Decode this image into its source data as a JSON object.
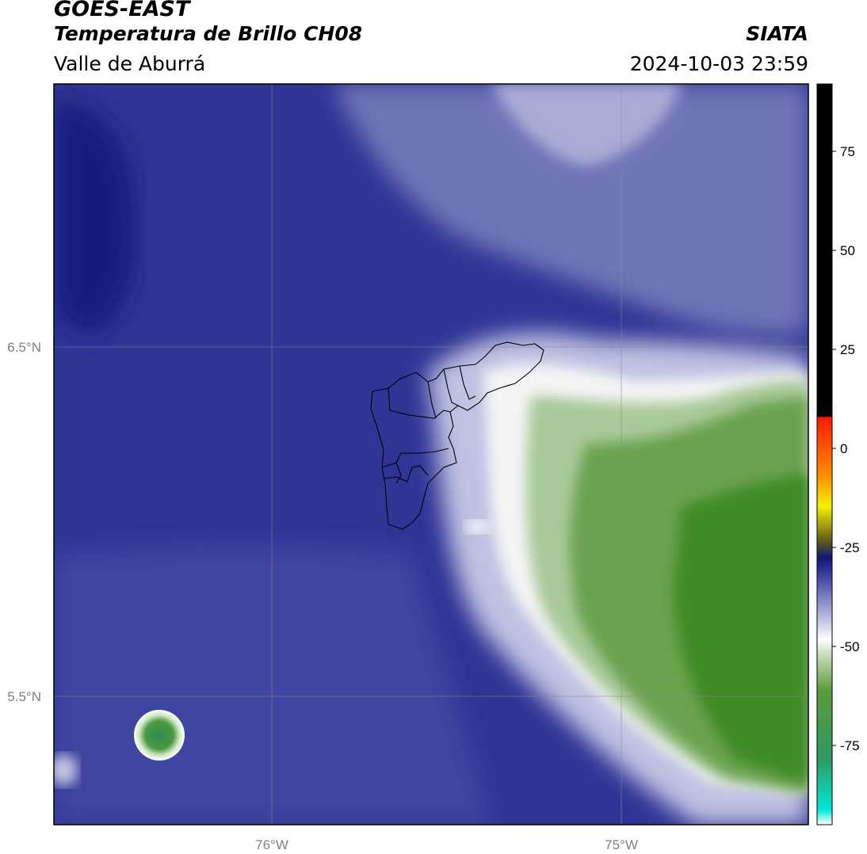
{
  "header": {
    "satellite": "GOES-EAST",
    "product": "Temperatura de Brillo CH08",
    "region": "Valle de Aburrá",
    "agency": "SIATA",
    "datetime": "2024-10-03 23:59"
  },
  "map": {
    "lat_ticks": [
      {
        "label": "6.5°N",
        "value": 6.5
      },
      {
        "label": "5.5°N",
        "value": 5.5
      }
    ],
    "lon_ticks": [
      {
        "label": "76°W",
        "value": -76.0
      },
      {
        "label": "75°W",
        "value": -75.0
      }
    ],
    "extent": {
      "lon_min": -76.63,
      "lon_max": -74.47,
      "lat_min": 5.13,
      "lat_max": 7.25
    },
    "gridlines": true,
    "overlay": "Valle de Aburrá municipal boundaries"
  },
  "colorbar": {
    "ticks": [
      "75",
      "50",
      "25",
      "0",
      "-25",
      "-50",
      "-75"
    ],
    "tick_values": [
      75,
      50,
      25,
      0,
      -25,
      -50,
      -75
    ],
    "range": [
      -95,
      92
    ],
    "colors": {
      "cold_cyan": "#00e8d8",
      "green": "#3f8f2a",
      "white": "#f4f4f4",
      "blue": "#4a4fa6",
      "navy": "#11167a",
      "yellow": "#f4f000",
      "orange": "#ff9000",
      "red": "#ff1a00",
      "black": "#000000"
    }
  },
  "colors": {
    "frame": "#000000",
    "gridline": "#8a8a8a",
    "tick_label": "#808080",
    "boundary": "#000000"
  }
}
